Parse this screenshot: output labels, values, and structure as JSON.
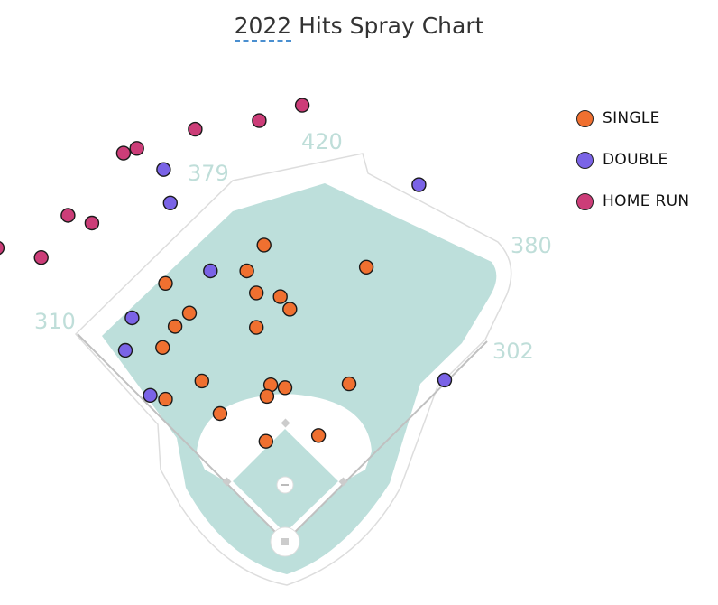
{
  "title_year": "2022",
  "title_rest": " Hits Spray Chart",
  "colors": {
    "single": "#f07030",
    "double": "#7a63e6",
    "home_run": "#cc3d78",
    "field_grass": "#bddfdb",
    "field_outline": "#dddddd",
    "distance_labels": "#bfded9"
  },
  "distance_markers": [
    {
      "label": "310"
    },
    {
      "label": "379"
    },
    {
      "label": "420"
    },
    {
      "label": "380"
    },
    {
      "label": "302"
    }
  ],
  "chart_data": {
    "type": "scatter",
    "title": "2022 Hits Spray Chart",
    "legend": {
      "position": "top-right",
      "entries": [
        "SINGLE",
        "DOUBLE",
        "HOME RUN"
      ]
    },
    "series": [
      {
        "name": "SINGLE",
        "x": [
          -22,
          -125,
          -40,
          85,
          -30,
          -5,
          5,
          -100,
          -115,
          -128,
          -30,
          -87,
          -15,
          0,
          67,
          -125,
          -19,
          -68,
          35,
          -20
        ],
        "y": [
          310,
          270,
          283,
          287,
          260,
          256,
          243,
          239,
          225,
          203,
          224,
          168,
          164,
          161,
          165,
          149,
          152,
          134,
          111,
          105
        ]
      },
      {
        "name": "DOUBLE",
        "x": [
          140,
          -120,
          -127,
          -78,
          -160,
          -167,
          -141,
          167
        ],
        "y": [
          373,
          354,
          389,
          283,
          234,
          200,
          153,
          169
        ]
      },
      {
        "name": "HOME RUN",
        "x": [
          18,
          -27,
          -94,
          -155,
          -169,
          -227,
          -255,
          -301,
          -202
        ],
        "y": [
          456,
          440,
          431,
          411,
          406,
          341,
          297,
          307,
          333
        ]
      }
    ]
  }
}
